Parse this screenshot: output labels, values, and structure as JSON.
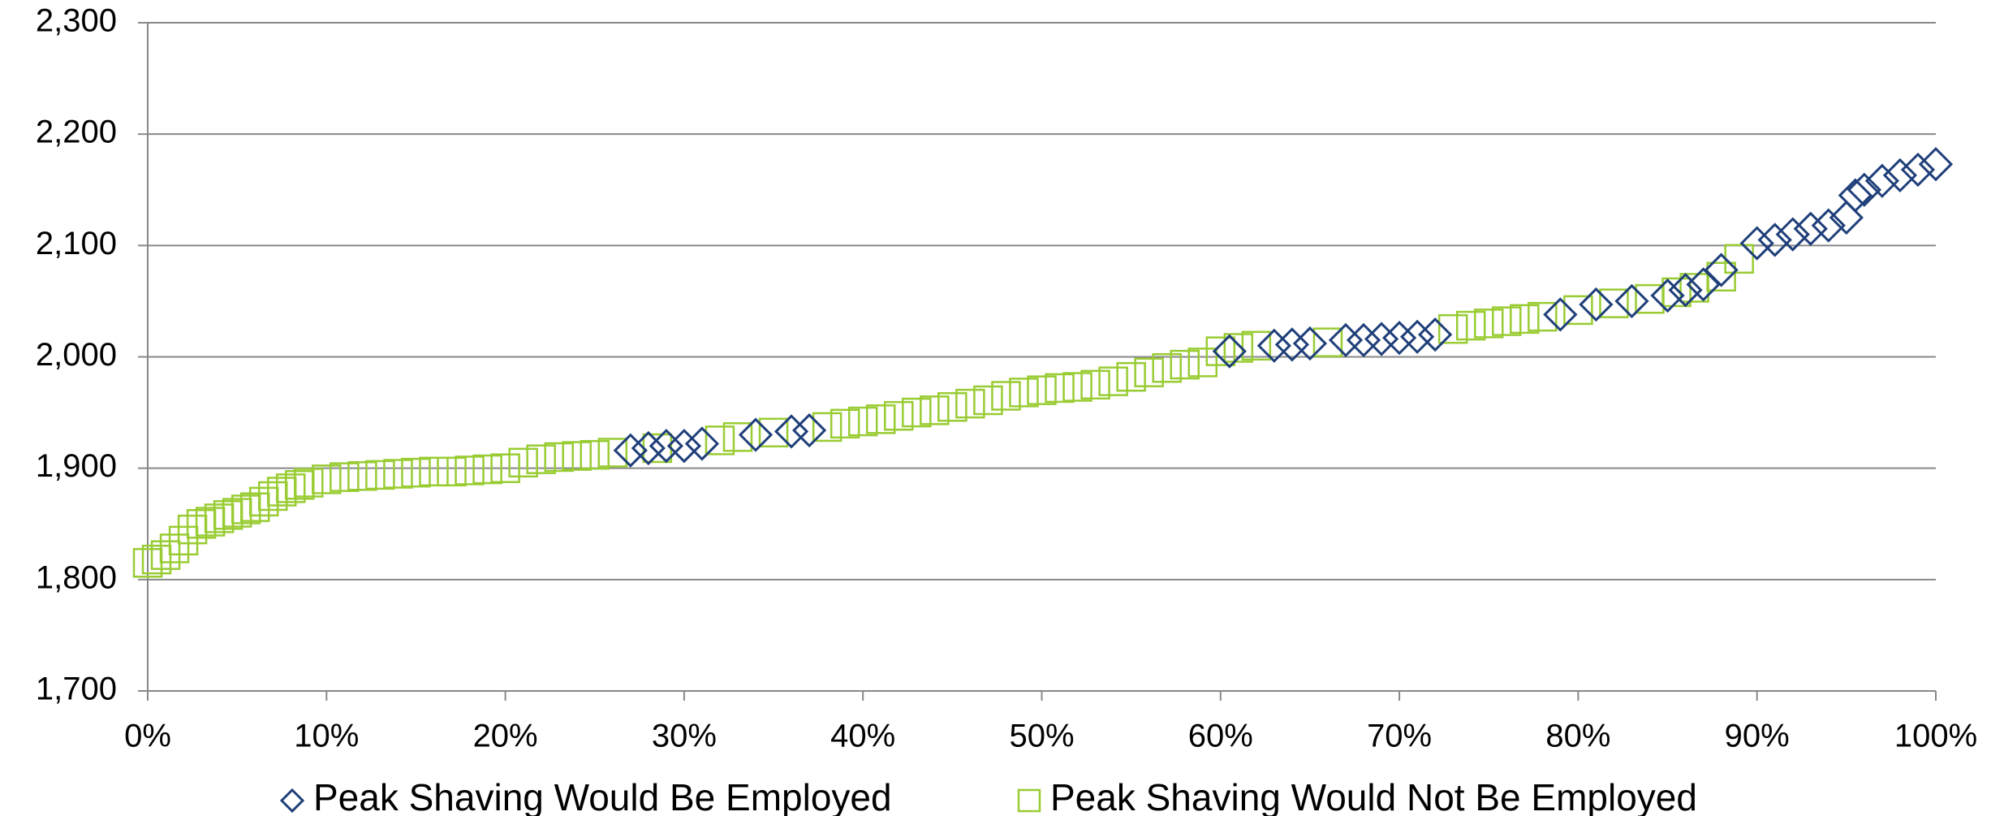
{
  "chart_data": {
    "type": "scatter",
    "xlim": [
      0,
      100
    ],
    "xticks": [
      {
        "value": 0,
        "label": "0%"
      },
      {
        "value": 10,
        "label": "10%"
      },
      {
        "value": 20,
        "label": "20%"
      },
      {
        "value": 30,
        "label": "30%"
      },
      {
        "value": 40,
        "label": "40%"
      },
      {
        "value": 50,
        "label": "50%"
      },
      {
        "value": 60,
        "label": "60%"
      },
      {
        "value": 70,
        "label": "70%"
      },
      {
        "value": 80,
        "label": "80%"
      },
      {
        "value": 90,
        "label": "90%"
      },
      {
        "value": 100,
        "label": "100%"
      }
    ],
    "ylim": [
      1700,
      2300
    ],
    "yticks": [
      {
        "value": 1700,
        "label": "1,700"
      },
      {
        "value": 1800,
        "label": "1,800"
      },
      {
        "value": 1900,
        "label": "1,900"
      },
      {
        "value": 2000,
        "label": "2,000"
      },
      {
        "value": 2100,
        "label": "2,100"
      },
      {
        "value": 2200,
        "label": "2,200"
      },
      {
        "value": 2300,
        "label": "2,300"
      }
    ],
    "grid": true,
    "series": [
      {
        "name": "Peak Shaving Would Be Employed",
        "marker": "diamond",
        "color": "#1f3f7a",
        "x": [
          27,
          28,
          29,
          30,
          31,
          34,
          36,
          37,
          60.5,
          63,
          64,
          65,
          67,
          68,
          69,
          70,
          71,
          72,
          79,
          81,
          83,
          85,
          86,
          87,
          88,
          90,
          91,
          92,
          93,
          94,
          95,
          95.5,
          96,
          97,
          98,
          99,
          100
        ],
        "values": [
          1916,
          1918,
          1920,
          1920,
          1922,
          1930,
          1933,
          1934,
          2005,
          2010,
          2011,
          2012,
          2015,
          2015,
          2016,
          2017,
          2018,
          2020,
          2038,
          2047,
          2050,
          2055,
          2060,
          2065,
          2078,
          2102,
          2105,
          2110,
          2115,
          2118,
          2125,
          2145,
          2150,
          2158,
          2163,
          2168,
          2173
        ]
      },
      {
        "name": "Peak Shaving Would Not Be Employed",
        "marker": "square",
        "color": "#99cc33",
        "x": [
          0,
          0.5,
          1,
          1.5,
          2,
          2.5,
          3,
          3.5,
          4,
          4.5,
          5,
          5.5,
          6,
          6.5,
          7,
          7.5,
          8,
          8.5,
          9,
          10,
          11,
          12,
          13,
          14,
          15,
          16,
          17,
          18,
          19,
          20,
          21,
          22,
          23,
          24,
          25,
          26,
          28.5,
          32,
          33,
          35,
          38,
          39,
          40,
          41,
          42,
          43,
          44,
          45,
          46,
          47,
          48,
          49,
          50,
          51,
          52,
          53,
          54,
          55,
          56,
          57,
          58,
          59,
          60,
          61,
          62,
          66,
          73,
          74,
          75,
          76,
          77,
          78,
          80,
          82,
          84,
          85.5,
          86.5,
          88,
          89
        ],
        "values": [
          1815,
          1818,
          1822,
          1828,
          1835,
          1845,
          1850,
          1852,
          1855,
          1858,
          1860,
          1863,
          1865,
          1870,
          1875,
          1879,
          1882,
          1885,
          1887,
          1890,
          1892,
          1893,
          1894,
          1895,
          1896,
          1897,
          1897,
          1898,
          1899,
          1900,
          1905,
          1908,
          1910,
          1911,
          1912,
          1914,
          1918,
          1925,
          1928,
          1932,
          1937,
          1940,
          1942,
          1944,
          1947,
          1950,
          1952,
          1955,
          1958,
          1961,
          1965,
          1968,
          1970,
          1972,
          1973,
          1975,
          1978,
          1982,
          1986,
          1990,
          1993,
          1995,
          2005,
          2008,
          2010,
          2013,
          2025,
          2028,
          2030,
          2032,
          2034,
          2036,
          2042,
          2048,
          2052,
          2058,
          2062,
          2072,
          2088
        ]
      }
    ]
  }
}
